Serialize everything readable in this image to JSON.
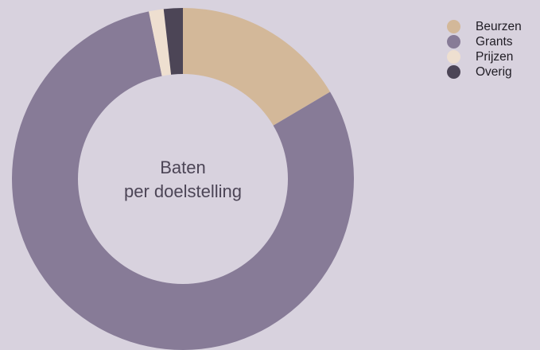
{
  "chart_data": {
    "type": "pie",
    "variant": "donut",
    "title_lines": [
      "Baten",
      "per doelstelling"
    ],
    "categories": [
      "Beurzen",
      "Grants",
      "Prijzen",
      "Overig"
    ],
    "values": [
      16.5,
      80.3,
      1.4,
      1.8
    ],
    "unit": "%",
    "colors": [
      "#d3b899",
      "#877b97",
      "#eedfd0",
      "#4c4556"
    ],
    "legend": "top-right",
    "start_angle": "12 o'clock, clockwise"
  },
  "colors": {
    "background": "#d8d2de",
    "text_dark": "#1f1c24"
  }
}
